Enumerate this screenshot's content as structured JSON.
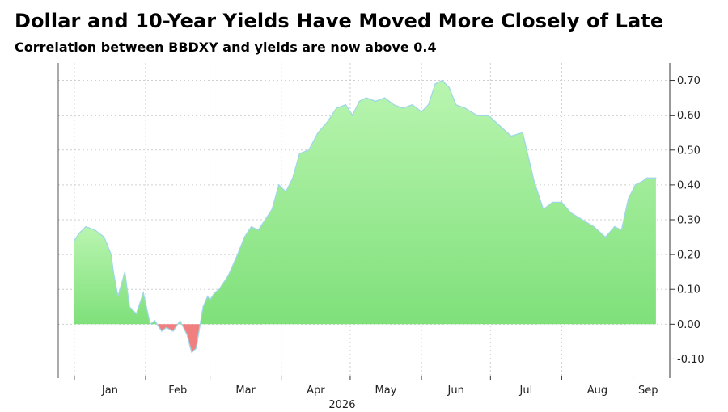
{
  "chart_data": {
    "type": "area",
    "title": "Dollar and 10-Year Yields Have Moved More Closely of Late",
    "subtitle": "Correlation between BBDXY and yields are now above 0.4",
    "xlabel": "",
    "ylabel": "",
    "year_label": "2026",
    "x_tick_labels": [
      "Jan",
      "Feb",
      "Mar",
      "Apr",
      "May",
      "Jun",
      "Jul",
      "Aug",
      "Sep"
    ],
    "y_tick_labels": [
      "0.70",
      "0.60",
      "0.50",
      "0.40",
      "0.30",
      "0.20",
      "0.10",
      "0.00",
      "-0.10"
    ],
    "ylim": [
      -0.15,
      0.75
    ],
    "grid": true,
    "colors": {
      "positive_fill_top": "#b9f5b0",
      "positive_fill_bottom": "#7fe07a",
      "negative_fill": "#f08080",
      "line": "#9fd7e6",
      "grid": "#cfcfcf"
    },
    "x": [
      "Jan 1",
      "Jan 3",
      "Jan 6",
      "Jan 10",
      "Jan 14",
      "Jan 17",
      "Jan 18",
      "Jan 20",
      "Jan 23",
      "Jan 25",
      "Jan 28",
      "Jan 31",
      "Feb 3",
      "Feb 5",
      "Feb 8",
      "Feb 10",
      "Feb 13",
      "Feb 16",
      "Feb 19",
      "Feb 21",
      "Feb 23",
      "Feb 26",
      "Feb 28",
      "Mar 1",
      "Mar 3",
      "Mar 5",
      "Mar 9",
      "Mar 13",
      "Mar 16",
      "Mar 19",
      "Mar 22",
      "Mar 25",
      "Mar 28",
      "Mar 31",
      "Apr 3",
      "Apr 6",
      "Apr 9",
      "Apr 13",
      "Apr 17",
      "Apr 21",
      "Apr 25",
      "Apr 29",
      "May 2",
      "May 5",
      "May 8",
      "May 12",
      "May 16",
      "May 20",
      "May 24",
      "May 28",
      "Jun 1",
      "Jun 4",
      "Jun 7",
      "Jun 10",
      "Jun 13",
      "Jun 16",
      "Jun 20",
      "Jun 25",
      "Jun 30",
      "Jul 5",
      "Jul 10",
      "Jul 15",
      "Jul 20",
      "Jul 24",
      "Jul 28",
      "Aug 1",
      "Aug 5",
      "Aug 10",
      "Aug 15",
      "Aug 20",
      "Aug 24",
      "Aug 27",
      "Aug 30",
      "Sep 2",
      "Sep 5",
      "Sep 7",
      "Sep 9",
      "Sep 11"
    ],
    "series": [
      {
        "values": [
          0.24,
          0.26,
          0.28,
          0.27,
          0.25,
          0.2,
          0.15,
          0.08,
          0.15,
          0.05,
          0.03,
          0.09,
          0.0,
          0.01,
          -0.02,
          -0.01,
          -0.02,
          0.01,
          -0.03,
          -0.08,
          -0.07,
          0.05,
          0.08,
          0.07,
          0.09,
          0.1,
          0.14,
          0.2,
          0.25,
          0.28,
          0.27,
          0.3,
          0.33,
          0.4,
          0.38,
          0.42,
          0.49,
          0.5,
          0.55,
          0.58,
          0.62,
          0.63,
          0.6,
          0.64,
          0.65,
          0.64,
          0.65,
          0.63,
          0.62,
          0.63,
          0.61,
          0.63,
          0.69,
          0.7,
          0.68,
          0.63,
          0.62,
          0.6,
          0.6,
          0.57,
          0.54,
          0.55,
          0.41,
          0.33,
          0.35,
          0.35,
          0.32,
          0.3,
          0.28,
          0.25,
          0.28,
          0.27,
          0.36,
          0.4,
          0.41,
          0.42,
          0.42,
          0.42
        ]
      }
    ]
  }
}
